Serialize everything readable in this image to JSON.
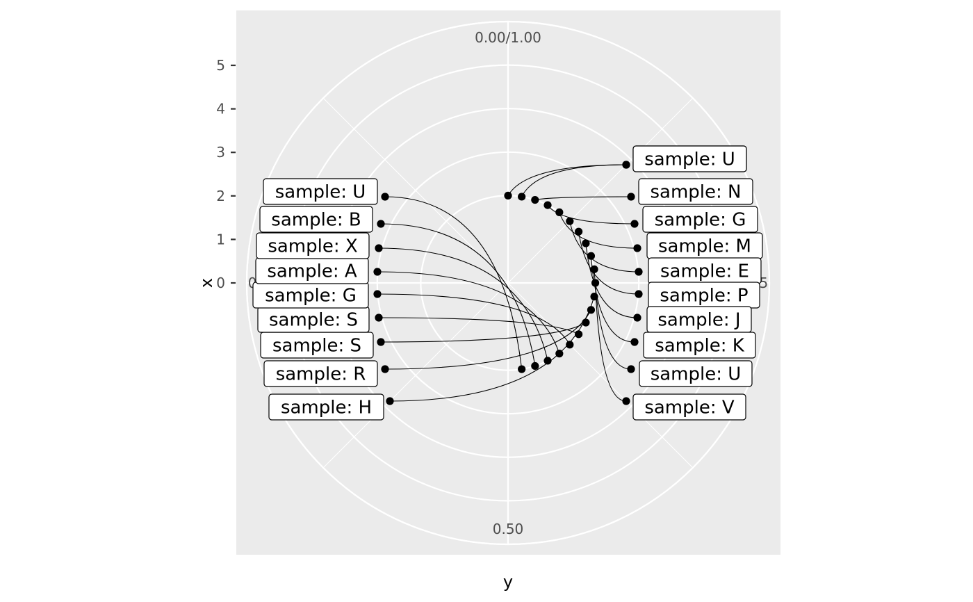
{
  "chart_data": {
    "type": "scatter",
    "coord": "polar",
    "xlabel": "y",
    "ylabel": "x",
    "theta_ticks": [
      "0.00/1.00",
      "0.25",
      "0.50",
      "0.75"
    ],
    "r_ticks": [
      0,
      1,
      2,
      3,
      4,
      5
    ],
    "r_range": [
      0,
      5
    ],
    "theta_range": [
      0,
      1
    ],
    "grid": true,
    "label_prefix": "sample: ",
    "points": [
      {
        "x": 1,
        "y": 0.0,
        "label": "sample: U",
        "side": "right"
      },
      {
        "x": 1,
        "y": 0.025,
        "label": "sample: U",
        "side": "right"
      },
      {
        "x": 1,
        "y": 0.05,
        "label": "sample: N",
        "side": "right"
      },
      {
        "x": 1,
        "y": 0.075,
        "label": "sample: G",
        "side": "right"
      },
      {
        "x": 1,
        "y": 0.1,
        "label": "sample: M",
        "side": "right"
      },
      {
        "x": 1,
        "y": 0.125,
        "label": "sample: E",
        "side": "right"
      },
      {
        "x": 1,
        "y": 0.15,
        "label": "sample: P",
        "side": "right"
      },
      {
        "x": 1,
        "y": 0.175,
        "label": "sample: J",
        "side": "right"
      },
      {
        "x": 1,
        "y": 0.2,
        "label": "sample: K",
        "side": "right"
      },
      {
        "x": 1,
        "y": 0.225,
        "label": "sample: U",
        "side": "right"
      },
      {
        "x": 1,
        "y": 0.25,
        "label": "sample: V",
        "side": "right"
      },
      {
        "x": 1,
        "y": 0.275,
        "label": "sample: H",
        "side": "left"
      },
      {
        "x": 1,
        "y": 0.3,
        "label": "sample: R",
        "side": "left"
      },
      {
        "x": 1,
        "y": 0.325,
        "label": "sample: S",
        "side": "left"
      },
      {
        "x": 1,
        "y": 0.35,
        "label": "sample: S",
        "side": "left"
      },
      {
        "x": 1,
        "y": 0.375,
        "label": "sample: G",
        "side": "left"
      },
      {
        "x": 1,
        "y": 0.4,
        "label": "sample: A",
        "side": "left"
      },
      {
        "x": 1,
        "y": 0.425,
        "label": "sample: X",
        "side": "left"
      },
      {
        "x": 1,
        "y": 0.45,
        "label": "sample: B",
        "side": "left"
      },
      {
        "x": 1,
        "y": 0.475,
        "label": "sample: U",
        "side": "left"
      }
    ]
  }
}
